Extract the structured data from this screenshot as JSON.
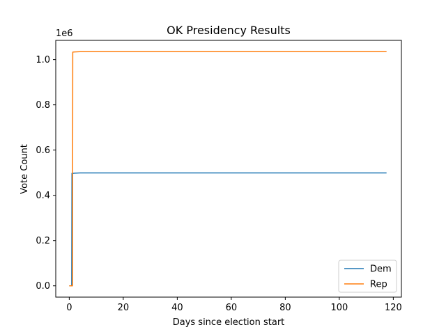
{
  "chart_data": {
    "type": "line",
    "title": "OK Presidency Results",
    "xlabel": "Days since election start",
    "ylabel": "Vote Count",
    "y_offset_label": "1e6",
    "xlim": [
      -5,
      123
    ],
    "ylim": [
      -0.05,
      1.085
    ],
    "x_ticks": [
      0,
      20,
      40,
      60,
      80,
      100,
      120
    ],
    "x_tick_labels": [
      "0",
      "20",
      "40",
      "60",
      "80",
      "100",
      "120"
    ],
    "y_ticks": [
      0.0,
      0.2,
      0.4,
      0.6,
      0.8,
      1.0
    ],
    "y_tick_labels": [
      "0.0",
      "0.2",
      "0.4",
      "0.6",
      "0.8",
      "1.0"
    ],
    "grid": false,
    "legend_position": "lower-right",
    "series": [
      {
        "name": "Dem",
        "color": "#1f77b4",
        "x": [
          0.0,
          0.9,
          1.0,
          1.5,
          2.0,
          4.0,
          10.0,
          117.5
        ],
        "y": [
          0.0,
          0.0,
          0.497,
          0.497,
          0.498,
          0.499,
          0.499,
          0.499
        ]
      },
      {
        "name": "Rep",
        "color": "#ff7f0e",
        "x": [
          0.0,
          1.2,
          1.3,
          2.0,
          4.0,
          10.0,
          117.5
        ],
        "y": [
          0.0,
          0.0,
          1.033,
          1.034,
          1.035,
          1.035,
          1.035
        ]
      }
    ]
  }
}
